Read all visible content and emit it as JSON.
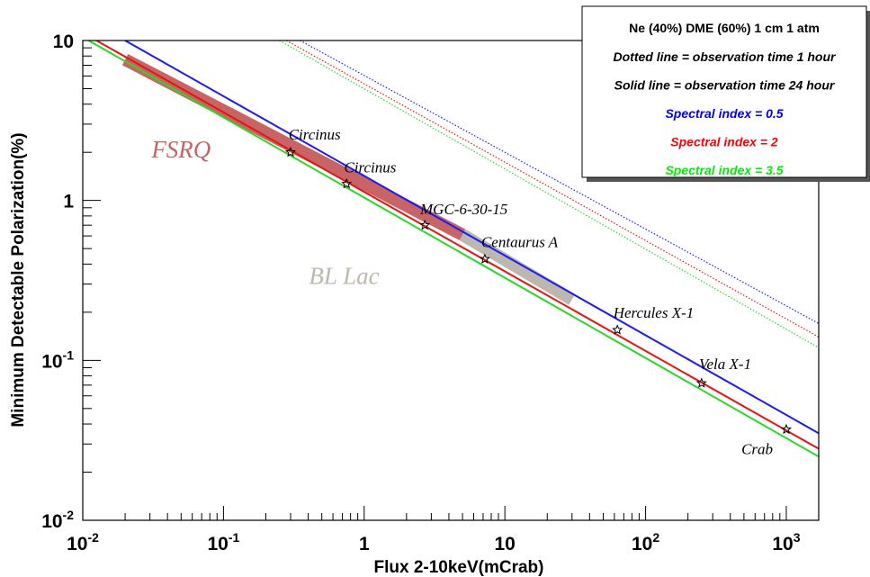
{
  "chart_data": {
    "type": "line",
    "xlabel": "Flux 2-10keV(mCrab)",
    "ylabel": "Minimum Detectable Polarization(%)",
    "xscale": "log",
    "yscale": "log",
    "xlim": [
      0.01,
      1700
    ],
    "ylim": [
      0.01,
      10
    ],
    "x_ticks": [
      {
        "value": 0.01,
        "base": "10",
        "exp": "-2"
      },
      {
        "value": 0.1,
        "base": "10",
        "exp": "-1"
      },
      {
        "value": 1,
        "base": "1",
        "exp": ""
      },
      {
        "value": 10,
        "base": "10",
        "exp": ""
      },
      {
        "value": 100,
        "base": "10",
        "exp": "2"
      },
      {
        "value": 1000,
        "base": "10",
        "exp": "3"
      }
    ],
    "y_ticks": [
      {
        "value": 0.01,
        "base": "10",
        "exp": "-2"
      },
      {
        "value": 0.1,
        "base": "10",
        "exp": "-1"
      },
      {
        "value": 1,
        "base": "1",
        "exp": ""
      },
      {
        "value": 10,
        "base": "10",
        "exp": ""
      }
    ],
    "grid": false,
    "legend_position": "top-right",
    "legend": {
      "title": "Ne (40%) DME (60%) 1 cm 1 atm",
      "lines": [
        {
          "text": "Dotted line = observation time 1 hour",
          "color": "#000000"
        },
        {
          "text": "Solid line = observation time 24 hour",
          "color": "#000000"
        },
        {
          "text": "Spectral index = 0.5",
          "color": "#0000ff"
        },
        {
          "text": "Spectral index = 2",
          "color": "#ff0000"
        },
        {
          "text": "Spectral index = 3.5",
          "color": "#00ee00"
        }
      ]
    },
    "series": [
      {
        "index": "0.5",
        "time": "24 hour",
        "style": "solid",
        "color": "#1a1aff",
        "points": [
          [
            0.02,
            10
          ],
          [
            1700,
            0.035
          ]
        ]
      },
      {
        "index": "2",
        "time": "24 hour",
        "style": "solid",
        "color": "#ee1111",
        "points": [
          [
            0.0125,
            10
          ],
          [
            1700,
            0.028
          ]
        ]
      },
      {
        "index": "3.5",
        "time": "24 hour",
        "style": "solid",
        "color": "#22dd22",
        "points": [
          [
            0.011,
            10
          ],
          [
            1700,
            0.025
          ]
        ]
      },
      {
        "index": "0.5",
        "time": "1 hour",
        "style": "dotted",
        "color": "#1a1aff",
        "points": [
          [
            0.35,
            10
          ],
          [
            1700,
            0.17
          ]
        ]
      },
      {
        "index": "2",
        "time": "1 hour",
        "style": "dotted",
        "color": "#ee1111",
        "points": [
          [
            0.28,
            10
          ],
          [
            1700,
            0.14
          ]
        ]
      },
      {
        "index": "3.5",
        "time": "1 hour",
        "style": "dotted",
        "color": "#22dd22",
        "points": [
          [
            0.25,
            10
          ],
          [
            1700,
            0.12
          ]
        ]
      }
    ],
    "bands": [
      {
        "label": "FSRQ",
        "color": "#c86464",
        "x": [
          0.02,
          5
        ],
        "y": [
          7.6,
          0.61
        ]
      },
      {
        "label": "BL Lac",
        "color": "#bdb8ae",
        "x": [
          5,
          30
        ],
        "y": [
          0.61,
          0.24
        ]
      }
    ],
    "band_labels": [
      {
        "text": "FSRQ",
        "x": 0.05,
        "y": 1.85,
        "color": "#c86464"
      },
      {
        "text": "BL Lac",
        "x": 0.72,
        "y": 0.3,
        "color": "#bdb8ae"
      }
    ],
    "sources": [
      {
        "name": "Circinus",
        "x": 0.3,
        "y": 2.0,
        "label_x": 0.29,
        "label_y": 2.4
      },
      {
        "name": "Circinus",
        "x": 0.75,
        "y": 1.27,
        "label_x": 0.72,
        "label_y": 1.5
      },
      {
        "name": "MGC-6-30-15",
        "x": 2.7,
        "y": 0.7,
        "label_x": 2.5,
        "label_y": 0.82
      },
      {
        "name": "Centaurus A",
        "x": 7.2,
        "y": 0.43,
        "label_x": 6.8,
        "label_y": 0.51
      },
      {
        "name": "Hercules X-1",
        "x": 63,
        "y": 0.155,
        "label_x": 59,
        "label_y": 0.185
      },
      {
        "name": "Vela X-1",
        "x": 250,
        "y": 0.072,
        "label_x": 240,
        "label_y": 0.088
      },
      {
        "name": "Crab",
        "x": 1000,
        "y": 0.037,
        "label_x": 480,
        "label_y": 0.026
      }
    ]
  }
}
